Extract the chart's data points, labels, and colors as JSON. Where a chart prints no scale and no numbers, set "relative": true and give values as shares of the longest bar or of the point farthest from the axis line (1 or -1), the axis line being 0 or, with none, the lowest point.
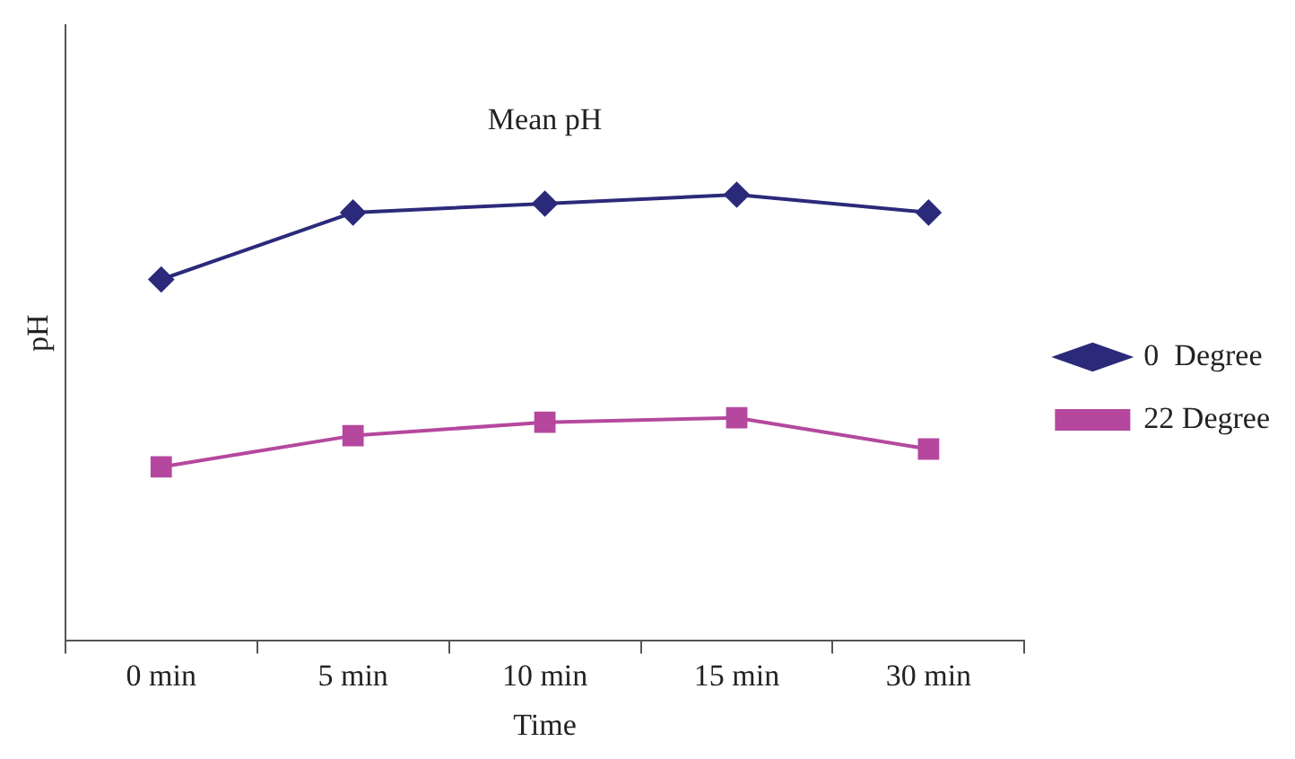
{
  "chart_data": {
    "type": "line",
    "title": "Mean pH",
    "xlabel": "Time",
    "ylabel": "pH",
    "relative": true,
    "legend": "right",
    "grid": false,
    "categories": [
      "0 min",
      "5 min",
      "10 min",
      "15 min",
      "30 min"
    ],
    "series": [
      {
        "name": "0  Degree",
        "color": "#2b2a7a",
        "marker": "diamond",
        "values": [
          0.81,
          0.96,
          0.98,
          1,
          0.96
        ]
      },
      {
        "name": "22 Degree",
        "color": "#b5489e",
        "marker": "square",
        "values": [
          0.39,
          0.46,
          0.49,
          0.5,
          0.43
        ]
      }
    ]
  }
}
